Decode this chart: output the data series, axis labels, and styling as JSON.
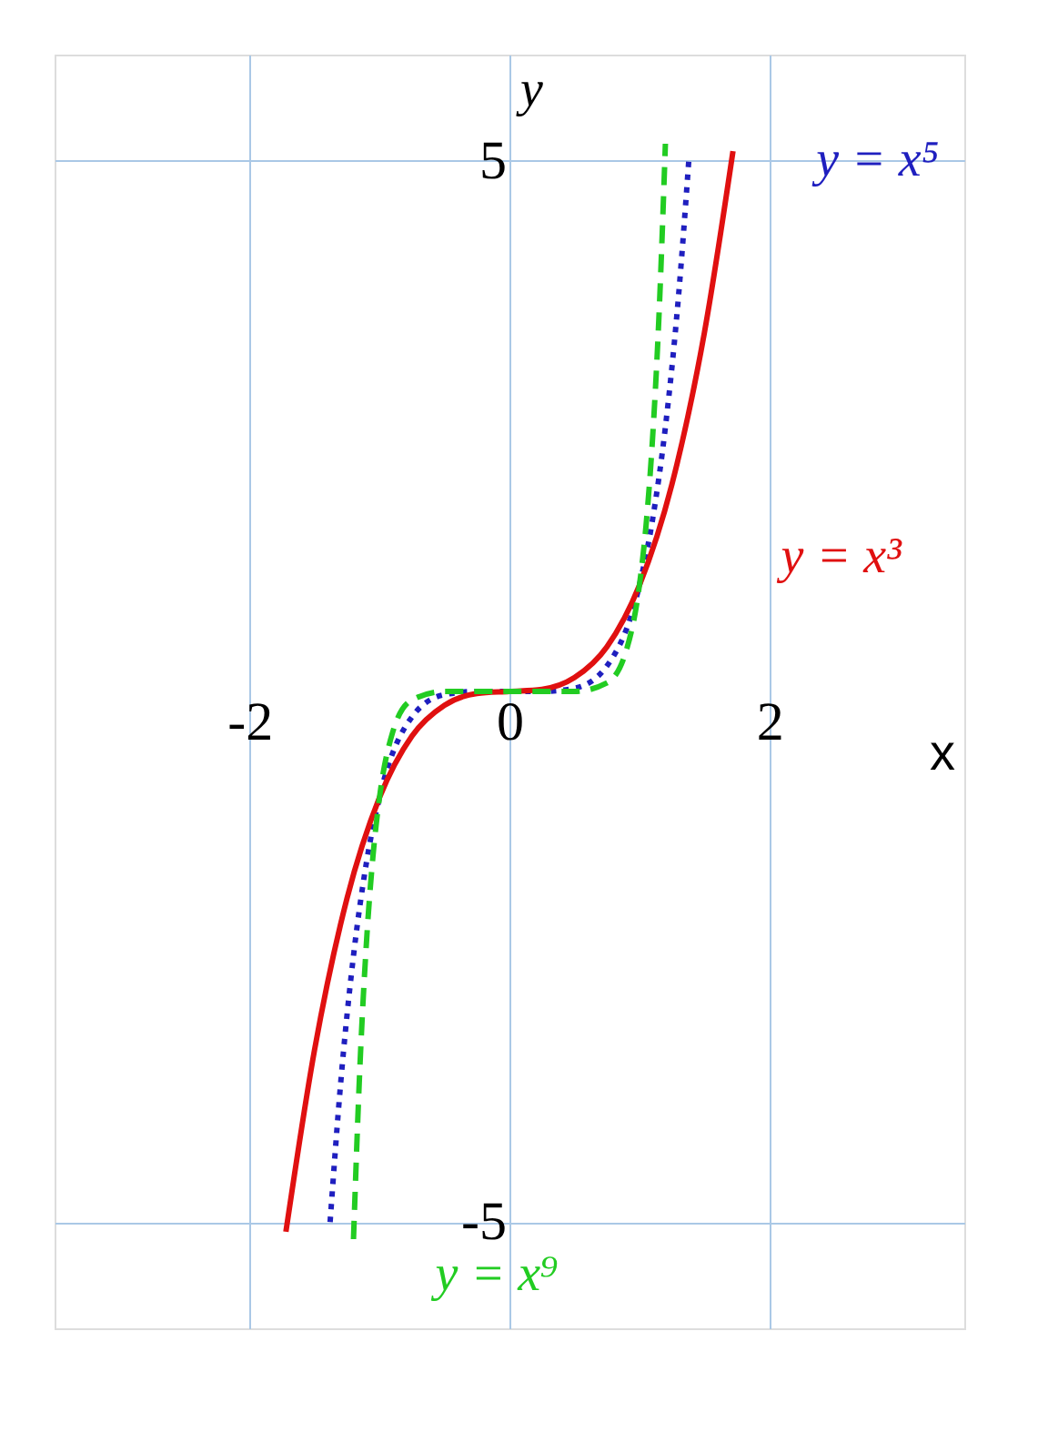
{
  "chart_data": {
    "type": "line",
    "xlabel": "x",
    "ylabel": "y",
    "xlim": [
      -3.5,
      3.5
    ],
    "ylim": [
      -6,
      6
    ],
    "xticks": [
      -2,
      0,
      2
    ],
    "yticks": [
      -5,
      5
    ],
    "grid": true,
    "series": [
      {
        "name": "y = x⁵",
        "color": "#1f1fbf",
        "line_style": "dotted",
        "x": [
          -1.38,
          -1.3,
          -1.2,
          -1.1,
          -1.0,
          -0.75,
          -0.5,
          -0.25,
          0,
          0.25,
          0.5,
          0.75,
          1.0,
          1.1,
          1.2,
          1.3,
          1.38
        ],
        "values": [
          -5.0,
          -3.71,
          -2.49,
          -1.61,
          -1.0,
          -0.24,
          -0.03,
          0.0,
          0,
          0.0,
          0.03,
          0.24,
          1.0,
          1.61,
          2.49,
          3.71,
          5.0
        ]
      },
      {
        "name": "y = x³",
        "color": "#e01010",
        "line_style": "solid",
        "x": [
          -1.72,
          -1.5,
          -1.25,
          -1.0,
          -0.75,
          -0.5,
          -0.25,
          0,
          0.25,
          0.5,
          0.75,
          1.0,
          1.25,
          1.5,
          1.72
        ],
        "values": [
          -5.09,
          -3.38,
          -1.95,
          -1.0,
          -0.42,
          -0.13,
          -0.02,
          0,
          0.02,
          0.13,
          0.42,
          1.0,
          1.95,
          3.38,
          5.09
        ]
      },
      {
        "name": "y = x⁹",
        "color": "#22cc22",
        "line_style": "dashed",
        "x": [
          -1.2,
          -1.15,
          -1.1,
          -1.05,
          -1.0,
          -0.9,
          -0.75,
          -0.5,
          0,
          0.5,
          0.75,
          0.9,
          1.0,
          1.05,
          1.1,
          1.15,
          1.2
        ],
        "values": [
          -5.16,
          -3.52,
          -2.36,
          -1.55,
          -1.0,
          -0.39,
          -0.08,
          0.0,
          0,
          0.0,
          0.08,
          0.39,
          1.0,
          1.55,
          2.36,
          3.52,
          5.16
        ]
      }
    ]
  }
}
